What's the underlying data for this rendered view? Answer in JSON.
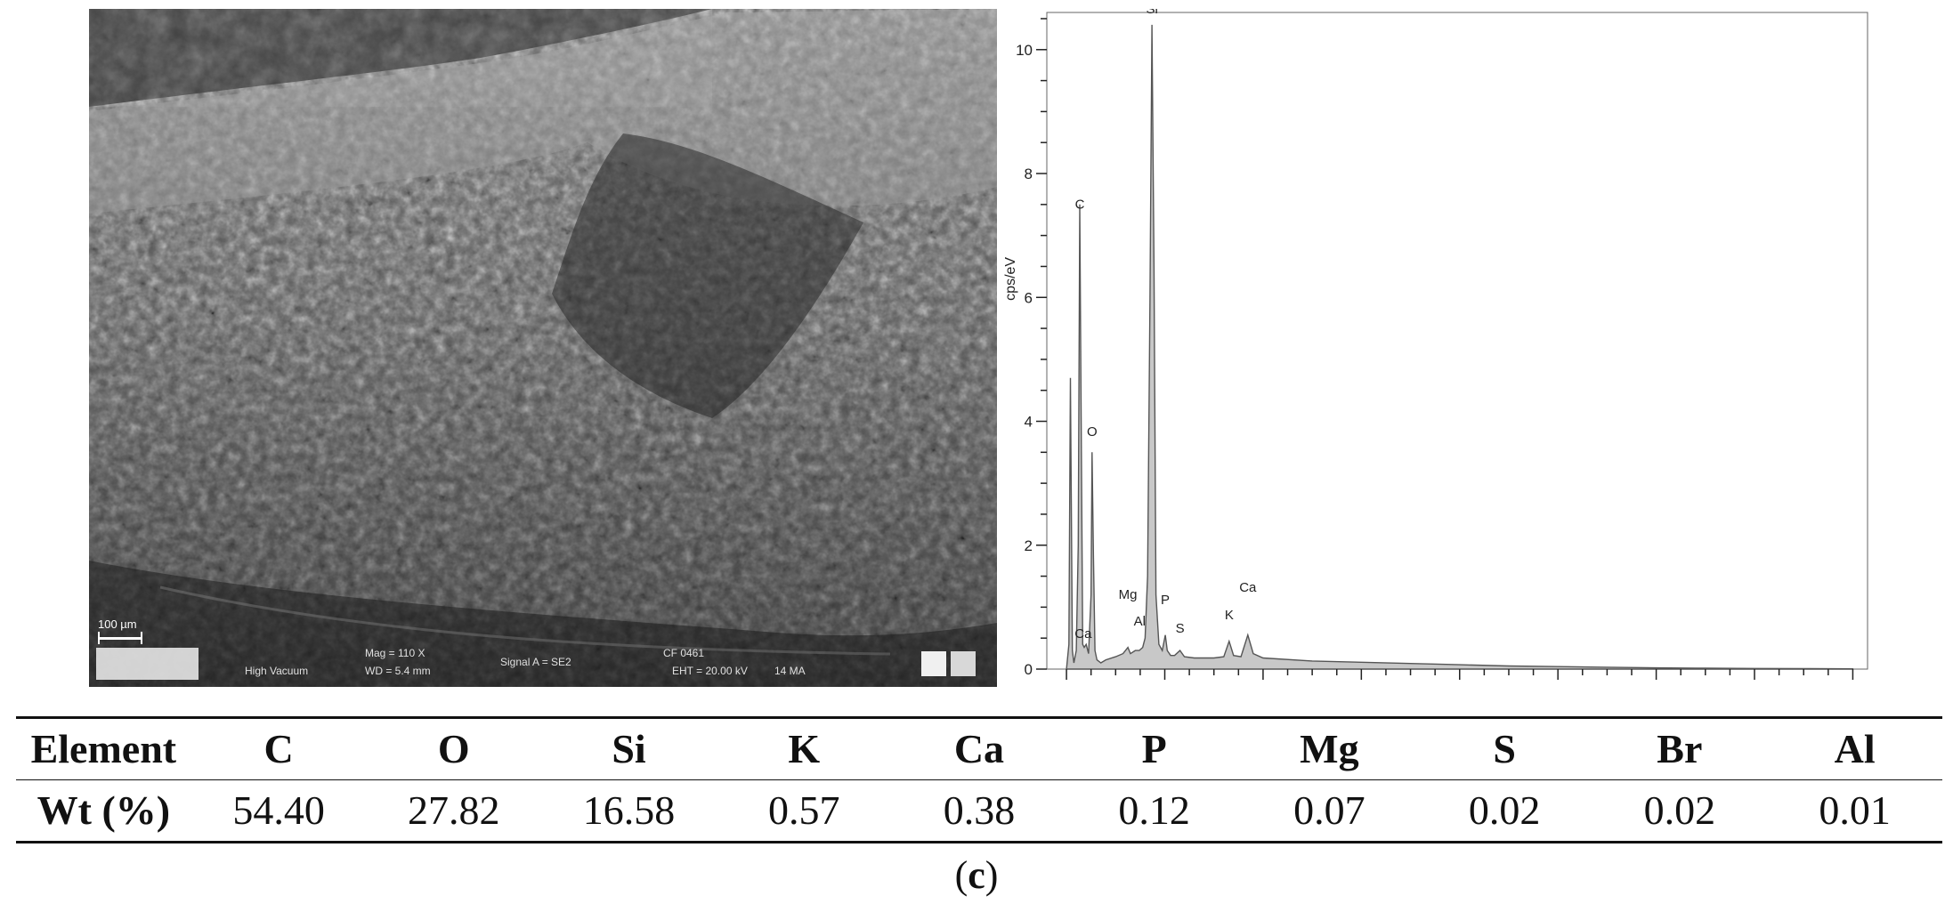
{
  "sem_image": {
    "scale_bar_label": "100 µm",
    "footer": {
      "mag": "Mag = 110 X",
      "wd": "WD = 5.4 mm",
      "signal": "Signal A = SE2",
      "ehv": "EHT = 20.00 kV",
      "date": "CF 0461",
      "detector": "High Vacuum",
      "time": "14 MA"
    }
  },
  "chart_data": {
    "type": "line",
    "ylabel": "cps/eV",
    "xlabel": "",
    "xlim": [
      -0.4,
      16.3
    ],
    "ylim": [
      0,
      10.6
    ],
    "xticks": [
      0,
      2,
      4,
      6,
      8,
      10,
      12,
      14,
      16
    ],
    "yticks": [
      0,
      2,
      4,
      6,
      8,
      10
    ],
    "grid": false,
    "series": [
      {
        "x": [
          0.0,
          0.05,
          0.08,
          0.1,
          0.12,
          0.15,
          0.2,
          0.24,
          0.27,
          0.3,
          0.33,
          0.36,
          0.4,
          0.45,
          0.5,
          0.52,
          0.55,
          0.58,
          0.62,
          0.7,
          0.8,
          1.0,
          1.15,
          1.25,
          1.3,
          1.4,
          1.48,
          1.55,
          1.6,
          1.65,
          1.7,
          1.74,
          1.78,
          1.82,
          1.88,
          1.95,
          2.01,
          2.05,
          2.12,
          2.2,
          2.31,
          2.4,
          2.6,
          3.0,
          3.2,
          3.31,
          3.4,
          3.55,
          3.69,
          3.8,
          4.0,
          5.0,
          6.0,
          7.0,
          8.0,
          9.0,
          10.0,
          11.0,
          12.0,
          13.0,
          14.0,
          15.0,
          16.0
        ],
        "values": [
          0.0,
          0.4,
          4.7,
          2.5,
          0.3,
          0.1,
          0.3,
          2.0,
          7.5,
          4.0,
          0.4,
          0.35,
          0.4,
          0.25,
          1.2,
          3.5,
          1.8,
          0.3,
          0.15,
          0.1,
          0.15,
          0.2,
          0.25,
          0.35,
          0.25,
          0.3,
          0.3,
          0.35,
          0.5,
          1.5,
          6.0,
          10.4,
          6.5,
          1.2,
          0.4,
          0.3,
          0.55,
          0.3,
          0.22,
          0.22,
          0.3,
          0.2,
          0.18,
          0.18,
          0.2,
          0.45,
          0.22,
          0.2,
          0.55,
          0.25,
          0.18,
          0.13,
          0.11,
          0.09,
          0.07,
          0.05,
          0.04,
          0.03,
          0.02,
          0.015,
          0.01,
          0.008,
          0.005
        ]
      }
    ],
    "annotations": [
      {
        "label": "Si",
        "x": 1.74,
        "y": 10.5
      },
      {
        "label": "C",
        "x": 0.27,
        "y": 7.35
      },
      {
        "label": "O",
        "x": 0.52,
        "y": 3.68
      },
      {
        "label": "Mg",
        "x": 1.25,
        "y": 1.05
      },
      {
        "label": "Al",
        "x": 1.49,
        "y": 0.62
      },
      {
        "label": "P",
        "x": 2.01,
        "y": 0.96
      },
      {
        "label": "S",
        "x": 2.31,
        "y": 0.5
      },
      {
        "label": "K",
        "x": 3.31,
        "y": 0.72
      },
      {
        "label": "Ca",
        "x": 3.69,
        "y": 1.16
      },
      {
        "label": "Ca",
        "x": 0.34,
        "y": 0.42
      }
    ]
  },
  "table": {
    "headers": [
      "Element",
      "C",
      "O",
      "Si",
      "K",
      "Ca",
      "P",
      "Mg",
      "S",
      "Br",
      "Al"
    ],
    "row_label": "Wt (%)",
    "values": [
      "54.40",
      "27.82",
      "16.58",
      "0.57",
      "0.38",
      "0.12",
      "0.07",
      "0.02",
      "0.02",
      "0.01"
    ]
  },
  "caption": {
    "open": "(",
    "letter": "c",
    "close": ")"
  }
}
